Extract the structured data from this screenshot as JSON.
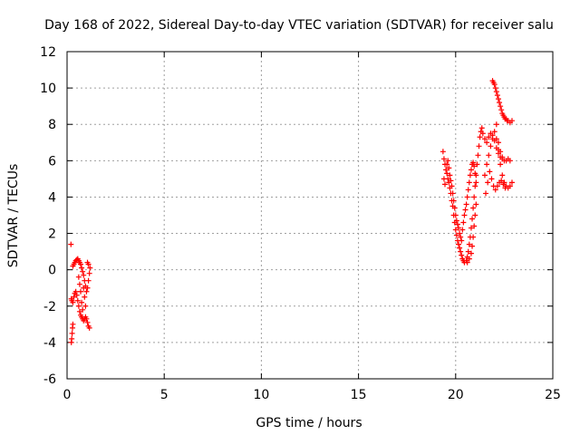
{
  "chart_data": {
    "type": "scatter",
    "title": "Day 168 of 2022, Sidereal Day-to-day VTEC variation (SDTVAR) for receiver salu",
    "xlabel": "GPS time / hours",
    "ylabel": "SDTVAR / TECUs",
    "xlim": [
      0,
      25
    ],
    "ylim": [
      -6,
      12
    ],
    "xticks": [
      0,
      5,
      10,
      15,
      20,
      25
    ],
    "yticks": [
      -6,
      -4,
      -2,
      0,
      2,
      4,
      6,
      8,
      10,
      12
    ],
    "grid": true,
    "marker": "+",
    "color": "#ff0000",
    "series": [
      {
        "name": "SDTVAR",
        "points": [
          [
            0.2,
            1.4
          ],
          [
            0.22,
            -4.0
          ],
          [
            0.24,
            -3.8
          ],
          [
            0.26,
            -3.5
          ],
          [
            0.28,
            -3.2
          ],
          [
            0.3,
            -3.0
          ],
          [
            0.22,
            -1.6
          ],
          [
            0.25,
            -1.7
          ],
          [
            0.3,
            -1.8
          ],
          [
            0.3,
            0.2
          ],
          [
            0.35,
            0.3
          ],
          [
            0.4,
            0.4
          ],
          [
            0.45,
            0.5
          ],
          [
            0.5,
            0.55
          ],
          [
            0.55,
            0.6
          ],
          [
            0.6,
            0.5
          ],
          [
            0.65,
            0.4
          ],
          [
            0.7,
            0.3
          ],
          [
            0.75,
            0.1
          ],
          [
            0.8,
            -0.1
          ],
          [
            0.85,
            -0.3
          ],
          [
            0.9,
            -0.6
          ],
          [
            0.95,
            -0.9
          ],
          [
            1.0,
            -1.2
          ],
          [
            1.05,
            -1.0
          ],
          [
            1.1,
            -0.6
          ],
          [
            1.15,
            -0.2
          ],
          [
            1.18,
            0.1
          ],
          [
            1.1,
            0.3
          ],
          [
            1.05,
            0.4
          ],
          [
            0.35,
            -1.5
          ],
          [
            0.4,
            -1.3
          ],
          [
            0.45,
            -1.2
          ],
          [
            0.5,
            -1.4
          ],
          [
            0.55,
            -1.7
          ],
          [
            0.6,
            -2.0
          ],
          [
            0.65,
            -2.3
          ],
          [
            0.7,
            -2.5
          ],
          [
            0.75,
            -2.6
          ],
          [
            0.8,
            -2.7
          ],
          [
            0.85,
            -2.8
          ],
          [
            0.9,
            -2.7
          ],
          [
            0.95,
            -2.6
          ],
          [
            1.0,
            -2.7
          ],
          [
            1.05,
            -2.9
          ],
          [
            1.1,
            -3.1
          ],
          [
            1.15,
            -3.2
          ],
          [
            0.85,
            -1.0
          ],
          [
            0.9,
            -1.5
          ],
          [
            0.95,
            -2.0
          ],
          [
            0.8,
            -2.2
          ],
          [
            0.75,
            -1.8
          ],
          [
            0.7,
            -1.2
          ],
          [
            0.65,
            -0.8
          ],
          [
            0.6,
            -0.4
          ],
          [
            19.35,
            6.5
          ],
          [
            19.4,
            6.1
          ],
          [
            19.45,
            5.8
          ],
          [
            19.5,
            5.5
          ],
          [
            19.55,
            5.3
          ],
          [
            19.6,
            5.0
          ],
          [
            19.65,
            4.8
          ],
          [
            19.7,
            4.5
          ],
          [
            19.75,
            4.2
          ],
          [
            19.8,
            3.8
          ],
          [
            19.85,
            3.5
          ],
          [
            19.9,
            3.0
          ],
          [
            19.95,
            2.6
          ],
          [
            20.0,
            2.2
          ],
          [
            20.05,
            1.9
          ],
          [
            20.1,
            1.6
          ],
          [
            20.15,
            1.4
          ],
          [
            20.2,
            1.2
          ],
          [
            20.25,
            1.0
          ],
          [
            20.3,
            0.8
          ],
          [
            20.35,
            0.6
          ],
          [
            20.4,
            0.5
          ],
          [
            20.45,
            0.4
          ],
          [
            19.4,
            5.0
          ],
          [
            19.45,
            4.7
          ],
          [
            19.55,
            5.8
          ],
          [
            19.6,
            6.0
          ],
          [
            19.65,
            5.6
          ],
          [
            19.7,
            5.2
          ],
          [
            19.75,
            4.9
          ],
          [
            19.8,
            4.6
          ],
          [
            19.85,
            4.2
          ],
          [
            19.9,
            3.8
          ],
          [
            19.95,
            3.4
          ],
          [
            20.0,
            3.0
          ],
          [
            20.05,
            2.7
          ],
          [
            20.1,
            2.5
          ],
          [
            20.15,
            2.3
          ],
          [
            20.2,
            2.0
          ],
          [
            20.25,
            1.8
          ],
          [
            20.3,
            1.6
          ],
          [
            20.35,
            2.2
          ],
          [
            20.4,
            2.6
          ],
          [
            20.45,
            3.0
          ],
          [
            20.5,
            3.3
          ],
          [
            20.55,
            3.6
          ],
          [
            20.6,
            4.0
          ],
          [
            20.65,
            4.4
          ],
          [
            20.7,
            4.8
          ],
          [
            20.75,
            5.2
          ],
          [
            20.8,
            5.5
          ],
          [
            20.85,
            5.8
          ],
          [
            20.9,
            5.9
          ],
          [
            20.95,
            5.7
          ],
          [
            21.0,
            5.3
          ],
          [
            21.05,
            4.8
          ],
          [
            20.55,
            0.5
          ],
          [
            20.6,
            0.7
          ],
          [
            20.65,
            1.0
          ],
          [
            20.7,
            1.4
          ],
          [
            20.75,
            1.8
          ],
          [
            20.8,
            2.3
          ],
          [
            20.85,
            2.8
          ],
          [
            20.9,
            3.4
          ],
          [
            20.95,
            4.0
          ],
          [
            21.0,
            4.6
          ],
          [
            21.05,
            5.2
          ],
          [
            21.1,
            5.8
          ],
          [
            21.15,
            6.3
          ],
          [
            21.2,
            6.8
          ],
          [
            21.25,
            7.3
          ],
          [
            21.3,
            7.6
          ],
          [
            21.35,
            7.8
          ],
          [
            20.6,
            0.4
          ],
          [
            20.7,
            0.6
          ],
          [
            20.8,
            0.9
          ],
          [
            20.85,
            1.3
          ],
          [
            20.9,
            1.8
          ],
          [
            20.95,
            2.4
          ],
          [
            21.0,
            3.0
          ],
          [
            21.05,
            3.6
          ],
          [
            21.4,
            7.5
          ],
          [
            21.5,
            7.2
          ],
          [
            21.6,
            7.0
          ],
          [
            21.7,
            7.3
          ],
          [
            21.8,
            7.5
          ],
          [
            21.9,
            7.4
          ],
          [
            22.0,
            7.1
          ],
          [
            22.1,
            6.7
          ],
          [
            22.2,
            6.4
          ],
          [
            22.3,
            6.2
          ],
          [
            22.4,
            6.1
          ],
          [
            22.5,
            6.0
          ],
          [
            22.6,
            6.0
          ],
          [
            22.7,
            6.1
          ],
          [
            22.8,
            6.0
          ],
          [
            21.5,
            5.2
          ],
          [
            21.6,
            5.8
          ],
          [
            21.7,
            6.3
          ],
          [
            21.8,
            6.8
          ],
          [
            21.9,
            7.2
          ],
          [
            22.0,
            7.6
          ],
          [
            22.1,
            7.2
          ],
          [
            22.2,
            6.6
          ],
          [
            22.3,
            5.8
          ],
          [
            22.4,
            5.2
          ],
          [
            22.5,
            4.8
          ],
          [
            22.6,
            4.6
          ],
          [
            22.7,
            4.5
          ],
          [
            22.8,
            4.6
          ],
          [
            22.9,
            4.8
          ],
          [
            21.55,
            4.2
          ],
          [
            21.65,
            4.8
          ],
          [
            21.75,
            5.4
          ],
          [
            21.85,
            5.0
          ],
          [
            21.95,
            4.6
          ],
          [
            22.05,
            4.4
          ],
          [
            22.15,
            4.6
          ],
          [
            22.25,
            4.8
          ],
          [
            22.35,
            4.9
          ],
          [
            22.45,
            4.7
          ],
          [
            22.55,
            4.5
          ],
          [
            21.9,
            10.4
          ],
          [
            21.95,
            10.3
          ],
          [
            22.0,
            10.2
          ],
          [
            22.05,
            10.0
          ],
          [
            22.1,
            9.8
          ],
          [
            22.15,
            9.6
          ],
          [
            22.2,
            9.4
          ],
          [
            22.25,
            9.2
          ],
          [
            22.3,
            9.0
          ],
          [
            22.35,
            8.8
          ],
          [
            22.4,
            8.6
          ],
          [
            22.45,
            8.5
          ],
          [
            22.5,
            8.4
          ],
          [
            22.55,
            8.3
          ],
          [
            22.6,
            8.3
          ],
          [
            22.65,
            8.2
          ],
          [
            22.7,
            8.2
          ],
          [
            22.8,
            8.1
          ],
          [
            22.9,
            8.2
          ],
          [
            22.1,
            8.0
          ],
          [
            22.2,
            7.0
          ],
          [
            22.3,
            6.5
          ],
          [
            22.4,
            6.2
          ]
        ]
      }
    ]
  }
}
